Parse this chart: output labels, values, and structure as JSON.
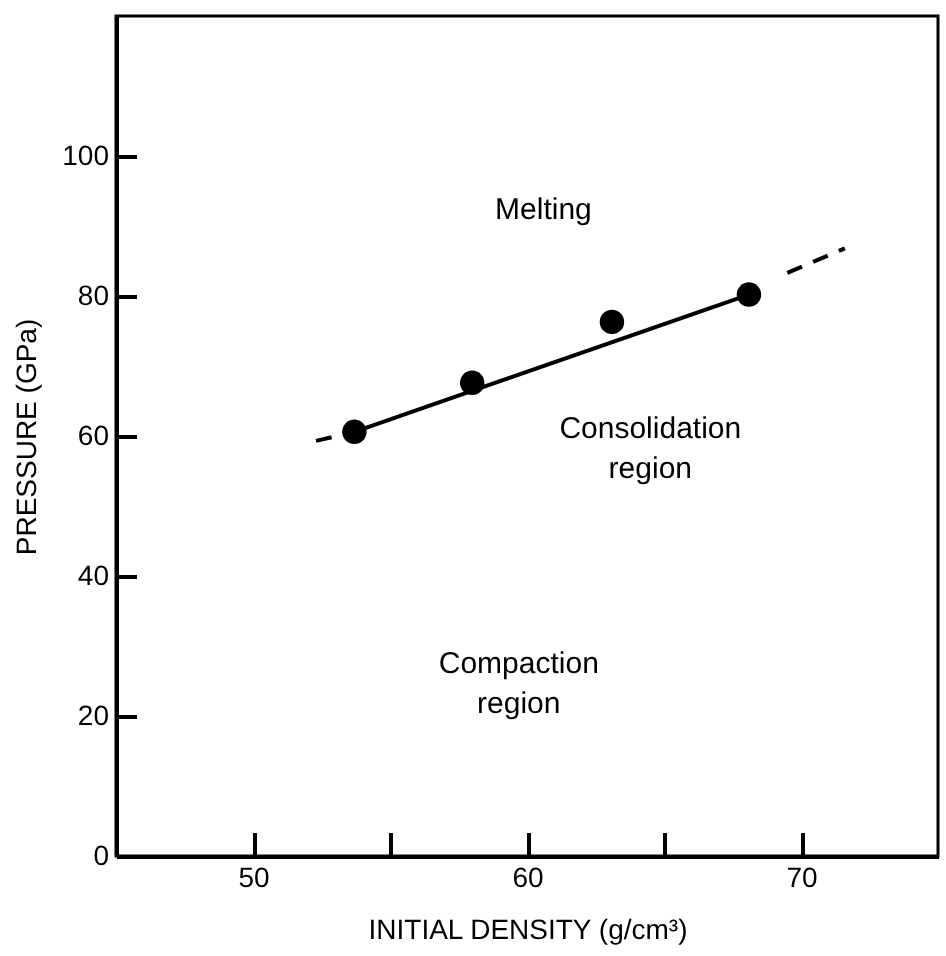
{
  "chart_data": {
    "type": "scatter",
    "xlabel": "INITIAL DENSITY  (g/cm³)",
    "ylabel": "PRESSURE (GPa)",
    "xlim": [
      45,
      75
    ],
    "ylim": [
      0,
      120
    ],
    "xticks": [
      50,
      {
        "value": 55,
        "label": null
      },
      60,
      {
        "value": 65,
        "label": null
      },
      70
    ],
    "yticks": [
      0,
      20,
      40,
      60,
      80,
      100
    ],
    "grid": false,
    "series": [
      {
        "type": "line",
        "color": "#000000",
        "line_style": "solid",
        "x": [
          53.7,
          68.1
        ],
        "values": [
          60.6,
          80.2
        ]
      },
      {
        "type": "line",
        "color": "#000000",
        "line_style": "dashed",
        "x": [
          52.3,
          53.7
        ],
        "values": [
          59.3,
          60.6
        ]
      },
      {
        "type": "line",
        "color": "#000000",
        "line_style": "dashed",
        "x": [
          69.5,
          71.6
        ],
        "values": [
          83.3,
          86.8
        ]
      },
      {
        "color": "#000000",
        "marker": "circle",
        "x": [
          53.7,
          58.0,
          63.1,
          68.1
        ],
        "values": [
          60.6,
          67.6,
          76.3,
          80.2
        ]
      }
    ],
    "annotations": [
      "Melting",
      "Consolidation region",
      "Compaction region"
    ]
  }
}
